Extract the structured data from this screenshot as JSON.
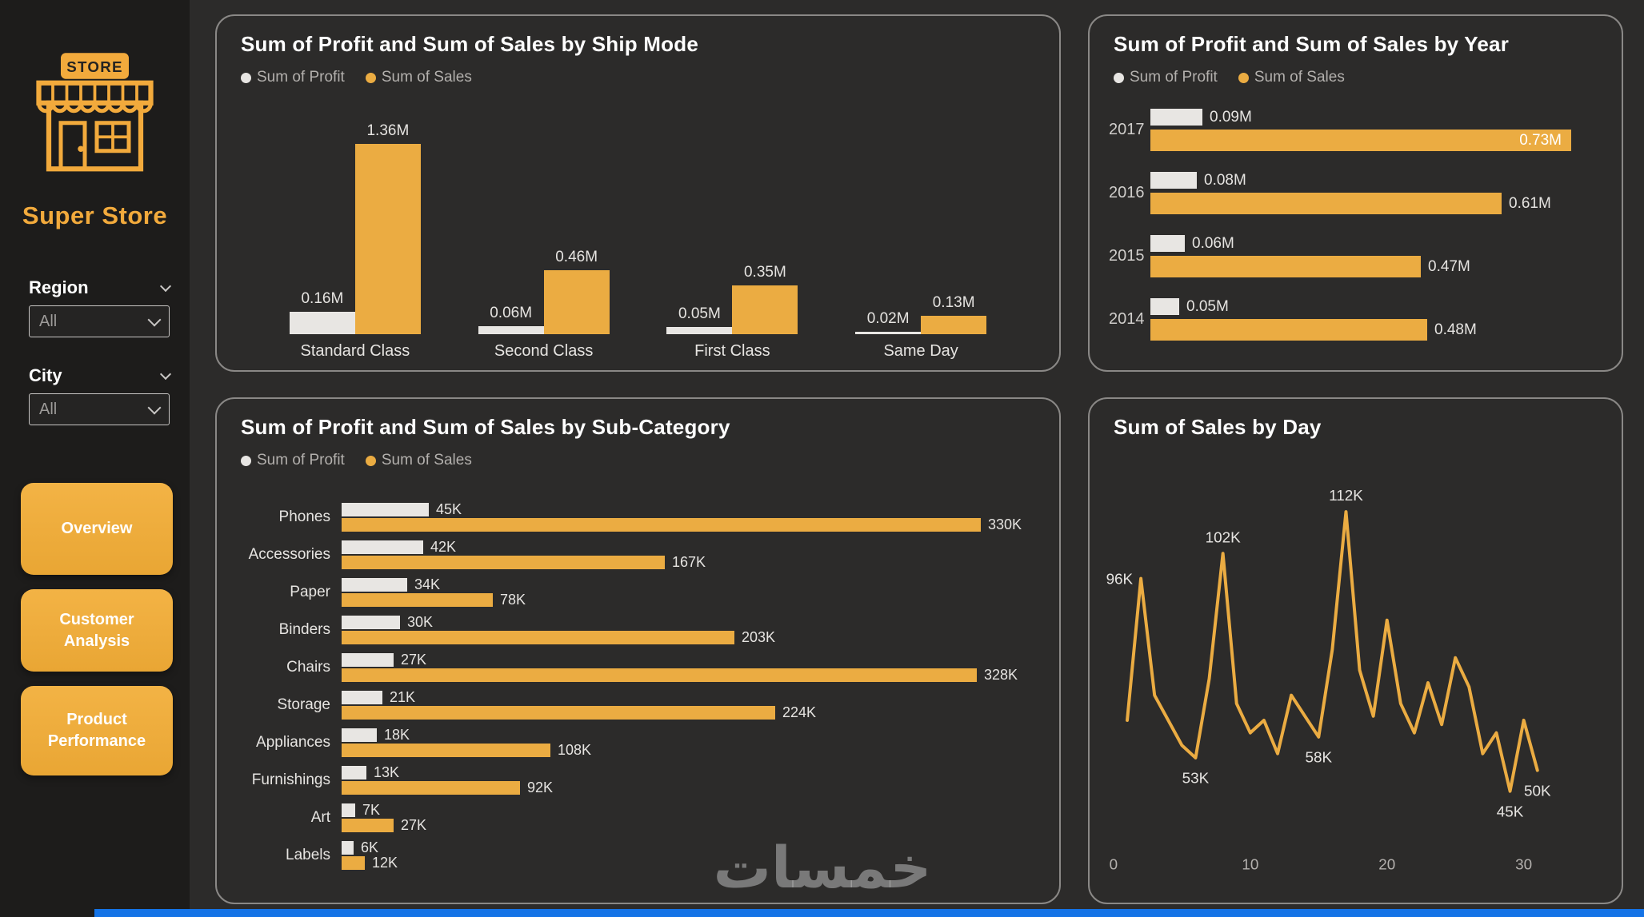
{
  "theme": {
    "background": "#2C2B2A",
    "sidebar_background": "#1D1C1B",
    "card_border": "#8A8886",
    "accent_yellow": "#EFAE3D",
    "sales_color": "#EBAC42",
    "profit_color": "#E8E6E3",
    "title_color": "#FFFFFF",
    "legend_text_color": "#B3B0AD",
    "value_label_color": "#E6E4E1",
    "bottom_strip_color": "#1473E6"
  },
  "sidebar": {
    "logo_sign_text": "STORE",
    "store_title": "Super Store",
    "filters": [
      {
        "label": "Region",
        "value": "All"
      },
      {
        "label": "City",
        "value": "All"
      }
    ],
    "nav_buttons": [
      {
        "label": "Overview"
      },
      {
        "label": "Customer Analysis"
      },
      {
        "label": "Product Performance"
      }
    ]
  },
  "watermark_text": "خمسات",
  "chart_data": [
    {
      "type": "bar",
      "orientation": "vertical",
      "title": "Sum of Profit and Sum of Sales by Ship Mode",
      "legend_position": "top-left",
      "categories": [
        "Standard Class",
        "Second Class",
        "First Class",
        "Same Day"
      ],
      "series": [
        {
          "name": "Sum of Profit",
          "color": "#E8E6E3",
          "unit": "M",
          "values": [
            0.16,
            0.06,
            0.05,
            0.02
          ],
          "labels": [
            "0.16M",
            "0.06M",
            "0.05M",
            "0.02M"
          ]
        },
        {
          "name": "Sum of Sales",
          "color": "#EBAC42",
          "unit": "M",
          "values": [
            1.36,
            0.46,
            0.35,
            0.13
          ],
          "labels": [
            "1.36M",
            "0.46M",
            "0.35M",
            "0.13M"
          ]
        }
      ],
      "ylim": [
        0,
        1.36
      ],
      "grid": false
    },
    {
      "type": "bar",
      "orientation": "horizontal",
      "title": "Sum of Profit and Sum of Sales by Year",
      "legend_position": "top-left",
      "categories": [
        "2017",
        "2016",
        "2015",
        "2014"
      ],
      "series": [
        {
          "name": "Sum of Profit",
          "color": "#E8E6E3",
          "unit": "M",
          "values": [
            0.09,
            0.08,
            0.06,
            0.05
          ],
          "labels": [
            "0.09M",
            "0.08M",
            "0.06M",
            "0.05M"
          ]
        },
        {
          "name": "Sum of Sales",
          "color": "#EBAC42",
          "unit": "M",
          "values": [
            0.73,
            0.61,
            0.47,
            0.48
          ],
          "labels": [
            "0.73M",
            "0.61M",
            "0.47M",
            "0.48M"
          ]
        }
      ],
      "xlim": [
        0,
        0.73
      ],
      "grid": false
    },
    {
      "type": "bar",
      "orientation": "horizontal",
      "title": "Sum of Profit and Sum of Sales by Sub-Category",
      "legend_position": "top-left",
      "categories": [
        "Phones",
        "Accessories",
        "Paper",
        "Binders",
        "Chairs",
        "Storage",
        "Appliances",
        "Furnishings",
        "Art",
        "Labels"
      ],
      "series": [
        {
          "name": "Sum of Profit",
          "color": "#E8E6E3",
          "unit": "K",
          "values": [
            45,
            42,
            34,
            30,
            27,
            21,
            18,
            13,
            7,
            6
          ],
          "labels": [
            "45K",
            "42K",
            "34K",
            "30K",
            "27K",
            "21K",
            "18K",
            "13K",
            "7K",
            "6K"
          ]
        },
        {
          "name": "Sum of Sales",
          "color": "#EBAC42",
          "unit": "K",
          "values": [
            330,
            167,
            78,
            203,
            328,
            224,
            108,
            92,
            27,
            12
          ],
          "labels": [
            "330K",
            "167K",
            "78K",
            "203K",
            "328K",
            "224K",
            "108K",
            "92K",
            "27K",
            "12K"
          ]
        }
      ],
      "xlim": [
        0,
        330
      ],
      "grid": false
    },
    {
      "type": "line",
      "title": "Sum of Sales by Day",
      "line_color": "#EBAC42",
      "unit": "K",
      "x": [
        1,
        2,
        3,
        4,
        5,
        6,
        7,
        8,
        9,
        10,
        11,
        12,
        13,
        14,
        15,
        16,
        17,
        18,
        19,
        20,
        21,
        22,
        23,
        24,
        25,
        26,
        27,
        28,
        29,
        30,
        31
      ],
      "values": [
        62,
        96,
        68,
        62,
        56,
        53,
        72,
        102,
        66,
        59,
        62,
        54,
        68,
        63,
        58,
        79,
        112,
        74,
        63,
        86,
        66,
        59,
        71,
        61,
        77,
        70,
        54,
        59,
        45,
        62,
        50
      ],
      "xlim": [
        0,
        31
      ],
      "x_ticks": [
        0,
        10,
        20,
        30
      ],
      "point_labels": [
        {
          "x": 2,
          "text": "96K",
          "placement": "left"
        },
        {
          "x": 6,
          "text": "53K",
          "placement": "below"
        },
        {
          "x": 8,
          "text": "102K",
          "placement": "above"
        },
        {
          "x": 15,
          "text": "58K",
          "placement": "below"
        },
        {
          "x": 17,
          "text": "112K",
          "placement": "above"
        },
        {
          "x": 29,
          "text": "45K",
          "placement": "below"
        },
        {
          "x": 31,
          "text": "50K",
          "placement": "below"
        }
      ],
      "grid": false
    }
  ]
}
